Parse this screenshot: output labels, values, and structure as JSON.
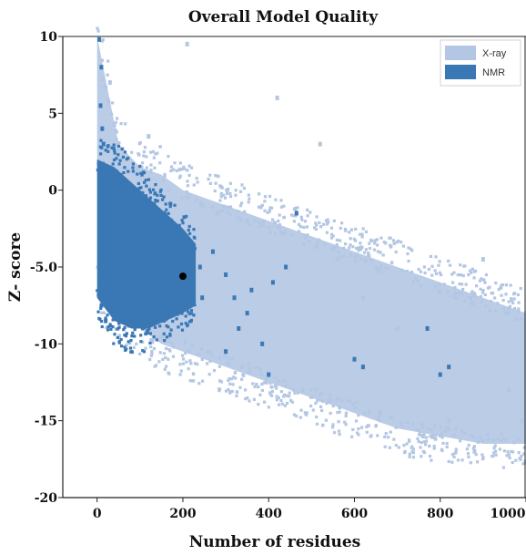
{
  "chart_data": {
    "type": "scatter",
    "title": "Overall Model Quality",
    "xlabel": "Number of residues",
    "ylabel": "Z- score",
    "xlim": [
      -80,
      1000
    ],
    "ylim": [
      -20,
      10
    ],
    "x_ticks": [
      {
        "value": 0,
        "label": "0"
      },
      {
        "value": 200,
        "label": "200"
      },
      {
        "value": 400,
        "label": "400"
      },
      {
        "value": 600,
        "label": "600"
      },
      {
        "value": 800,
        "label": "800"
      },
      {
        "value": 1000,
        "label": "1000"
      }
    ],
    "y_ticks": [
      {
        "value": 10,
        "label": "10"
      },
      {
        "value": 5,
        "label": "5"
      },
      {
        "value": 0,
        "label": "0"
      },
      {
        "value": -5,
        "label": "-5.0"
      },
      {
        "value": -10,
        "label": "-10"
      },
      {
        "value": -15,
        "label": "-15"
      },
      {
        "value": -20,
        "label": "-20"
      }
    ],
    "legend_position": "top-right",
    "grid": false,
    "series": [
      {
        "name": "X-ray",
        "color": "#b3c6e3",
        "envelope": [
          [
            0,
            10,
            -6
          ],
          [
            50,
            3,
            -8
          ],
          [
            100,
            1.5,
            -9
          ],
          [
            150,
            1,
            -10
          ],
          [
            200,
            0,
            -10.5
          ],
          [
            300,
            -1,
            -11.5
          ],
          [
            400,
            -2,
            -12.5
          ],
          [
            500,
            -3,
            -13.5
          ],
          [
            600,
            -4,
            -14.5
          ],
          [
            700,
            -5,
            -15.5
          ],
          [
            800,
            -6,
            -16
          ],
          [
            900,
            -7,
            -16.5
          ],
          [
            1000,
            -8,
            -16.5
          ]
        ],
        "outliers": [
          [
            30,
            7
          ],
          [
            120,
            3.5
          ],
          [
            210,
            9.5
          ],
          [
            280,
            -1.5
          ],
          [
            350,
            -2
          ],
          [
            420,
            6
          ],
          [
            520,
            3
          ],
          [
            560,
            -4.5
          ],
          [
            620,
            -7
          ],
          [
            700,
            -9
          ],
          [
            760,
            -16
          ],
          [
            820,
            -15
          ],
          [
            880,
            -17
          ],
          [
            900,
            -4.5
          ],
          [
            960,
            -13
          ],
          [
            990,
            -15
          ]
        ]
      },
      {
        "name": "NMR",
        "color": "#3a78b5",
        "envelope": [
          [
            0,
            2,
            -7
          ],
          [
            40,
            1.5,
            -8.5
          ],
          [
            80,
            0.5,
            -9
          ],
          [
            120,
            -0.5,
            -9
          ],
          [
            160,
            -1.5,
            -8.5
          ],
          [
            200,
            -2.5,
            -8
          ],
          [
            230,
            -3.5,
            -7.5
          ]
        ],
        "outliers": [
          [
            5,
            9.8
          ],
          [
            10,
            8
          ],
          [
            8,
            5.5
          ],
          [
            12,
            4
          ],
          [
            15,
            3
          ],
          [
            240,
            -5
          ],
          [
            245,
            -7
          ],
          [
            270,
            -4
          ],
          [
            300,
            -5.5
          ],
          [
            320,
            -7
          ],
          [
            330,
            -9
          ],
          [
            350,
            -8
          ],
          [
            360,
            -6.5
          ],
          [
            385,
            -10
          ],
          [
            400,
            -12
          ],
          [
            410,
            -6
          ],
          [
            440,
            -5
          ],
          [
            465,
            -1.5
          ],
          [
            300,
            -10.5
          ],
          [
            600,
            -11
          ],
          [
            620,
            -11.5
          ],
          [
            770,
            -9
          ],
          [
            800,
            -12
          ],
          [
            820,
            -11.5
          ],
          [
            10,
            -7.5
          ],
          [
            20,
            -8.5
          ]
        ]
      }
    ],
    "highlight_point": {
      "x": 200,
      "y": -5.6,
      "color": "#000000"
    }
  }
}
